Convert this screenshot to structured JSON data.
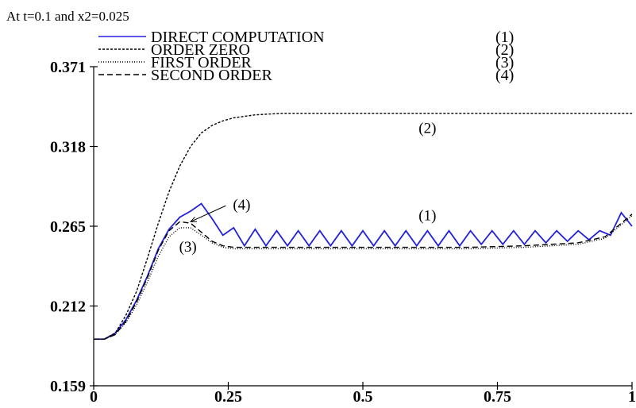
{
  "chart_data": {
    "type": "line",
    "title": "At t=0.1 and x2=0.025",
    "xlabel": "",
    "ylabel": "",
    "xlim": [
      0,
      1
    ],
    "ylim": [
      0.159,
      0.371
    ],
    "x_ticks": [
      {
        "value": 0,
        "label": "0"
      },
      {
        "value": 0.25,
        "label": "0.25"
      },
      {
        "value": 0.5,
        "label": "0.5"
      },
      {
        "value": 0.75,
        "label": "0.75"
      },
      {
        "value": 1,
        "label": "1"
      }
    ],
    "y_ticks": [
      {
        "value": 0.159,
        "label": "0.159"
      },
      {
        "value": 0.212,
        "label": "0.212"
      },
      {
        "value": 0.265,
        "label": "0.265"
      },
      {
        "value": 0.318,
        "label": "0.318"
      },
      {
        "value": 0.371,
        "label": "0.371"
      }
    ],
    "grid": false,
    "legend_position": "top",
    "series": [
      {
        "name": "DIRECT COMPUTATION",
        "tag": "(1)",
        "color": "#2222dd",
        "dash": "solid",
        "x": [
          0,
          0.02,
          0.04,
          0.06,
          0.08,
          0.1,
          0.12,
          0.14,
          0.16,
          0.18,
          0.2,
          0.22,
          0.24,
          0.26,
          0.28,
          0.3,
          0.32,
          0.34,
          0.36,
          0.38,
          0.4,
          0.42,
          0.44,
          0.46,
          0.48,
          0.5,
          0.52,
          0.54,
          0.56,
          0.58,
          0.6,
          0.62,
          0.64,
          0.66,
          0.68,
          0.7,
          0.72,
          0.74,
          0.76,
          0.78,
          0.8,
          0.82,
          0.84,
          0.86,
          0.88,
          0.9,
          0.92,
          0.94,
          0.96,
          0.98,
          1
        ],
        "y": [
          0.19,
          0.19,
          0.194,
          0.203,
          0.216,
          0.232,
          0.25,
          0.263,
          0.271,
          0.275,
          0.28,
          0.27,
          0.259,
          0.264,
          0.252,
          0.263,
          0.252,
          0.262,
          0.252,
          0.262,
          0.252,
          0.262,
          0.252,
          0.262,
          0.252,
          0.262,
          0.252,
          0.262,
          0.252,
          0.262,
          0.252,
          0.262,
          0.252,
          0.262,
          0.252,
          0.262,
          0.253,
          0.262,
          0.253,
          0.262,
          0.253,
          0.262,
          0.254,
          0.262,
          0.255,
          0.262,
          0.256,
          0.262,
          0.259,
          0.274,
          0.265
        ]
      },
      {
        "name": "ORDER ZERO",
        "tag": "(2)",
        "color": "#000000",
        "dash": "3,2",
        "x": [
          0,
          0.02,
          0.04,
          0.06,
          0.08,
          0.1,
          0.12,
          0.14,
          0.16,
          0.18,
          0.2,
          0.22,
          0.24,
          0.26,
          0.28,
          0.3,
          0.35,
          0.4,
          0.45,
          0.5,
          0.6,
          0.7,
          0.8,
          0.9,
          1
        ],
        "y": [
          0.19,
          0.19,
          0.194,
          0.206,
          0.222,
          0.244,
          0.267,
          0.288,
          0.305,
          0.318,
          0.327,
          0.332,
          0.335,
          0.337,
          0.338,
          0.339,
          0.34,
          0.34,
          0.34,
          0.34,
          0.34,
          0.34,
          0.34,
          0.34,
          0.34
        ]
      },
      {
        "name": "FIRST ORDER",
        "tag": "(3)",
        "color": "#000000",
        "dash": "1,2",
        "x": [
          0,
          0.02,
          0.04,
          0.06,
          0.08,
          0.1,
          0.12,
          0.14,
          0.16,
          0.18,
          0.2,
          0.22,
          0.24,
          0.26,
          0.3,
          0.35,
          0.4,
          0.5,
          0.6,
          0.7,
          0.8,
          0.85,
          0.9,
          0.95,
          1
        ],
        "y": [
          0.19,
          0.19,
          0.193,
          0.201,
          0.213,
          0.228,
          0.245,
          0.258,
          0.264,
          0.264,
          0.259,
          0.254,
          0.251,
          0.25,
          0.25,
          0.25,
          0.25,
          0.25,
          0.25,
          0.25,
          0.251,
          0.252,
          0.253,
          0.257,
          0.272
        ]
      },
      {
        "name": "SECOND ORDER",
        "tag": "(4)",
        "color": "#000000",
        "dash": "7,4",
        "x": [
          0,
          0.02,
          0.04,
          0.06,
          0.08,
          0.1,
          0.12,
          0.14,
          0.16,
          0.18,
          0.2,
          0.22,
          0.24,
          0.26,
          0.3,
          0.35,
          0.4,
          0.5,
          0.6,
          0.7,
          0.8,
          0.85,
          0.9,
          0.95,
          1
        ],
        "y": [
          0.19,
          0.19,
          0.193,
          0.202,
          0.215,
          0.231,
          0.249,
          0.262,
          0.268,
          0.267,
          0.261,
          0.255,
          0.252,
          0.251,
          0.251,
          0.251,
          0.251,
          0.251,
          0.251,
          0.251,
          0.252,
          0.253,
          0.254,
          0.258,
          0.273
        ]
      }
    ],
    "annotations": [
      {
        "text": "(2)",
        "x": 0.62,
        "y": 0.327
      },
      {
        "text": "(1)",
        "x": 0.62,
        "y": 0.269
      },
      {
        "text": "(4)",
        "x": 0.275,
        "y": 0.276,
        "arrow_to": [
          0.18,
          0.268
        ]
      },
      {
        "text": "(3)",
        "x": 0.175,
        "y": 0.248
      }
    ]
  }
}
